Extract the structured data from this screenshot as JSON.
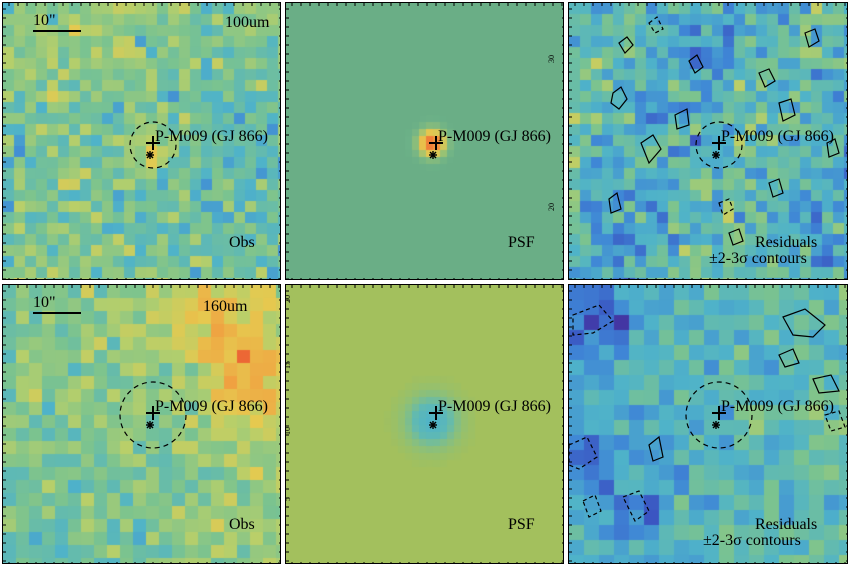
{
  "source_label": "P-M009 (GJ 866)",
  "scale_label": "10\"",
  "rows": [
    {
      "band": "100um",
      "panels": {
        "obs": {
          "label": "Obs"
        },
        "psf": {
          "label": "PSF"
        },
        "residuals": {
          "label": "Residuals",
          "sublabel": "±2-3σ contours"
        }
      }
    },
    {
      "band": "160um",
      "panels": {
        "obs": {
          "label": "Obs"
        },
        "psf": {
          "label": "PSF"
        },
        "residuals": {
          "label": "Residuals",
          "sublabel": "±2-3σ contours"
        }
      }
    }
  ],
  "axis_ticks": {
    "top_psf_right": [
      "30",
      "20"
    ],
    "bottom_psf_left": [
      "20",
      "15",
      "10",
      "5"
    ]
  },
  "colors": {
    "colormap": [
      "#4b1f8a",
      "#3a4fbf",
      "#3f86d6",
      "#4fb3c9",
      "#7bc38f",
      "#b7cf6a",
      "#e6c94f",
      "#f29a3f",
      "#e8432d"
    ],
    "background_psf_top": "#6aae86",
    "background_psf_bottom": "#a3c05d"
  }
}
